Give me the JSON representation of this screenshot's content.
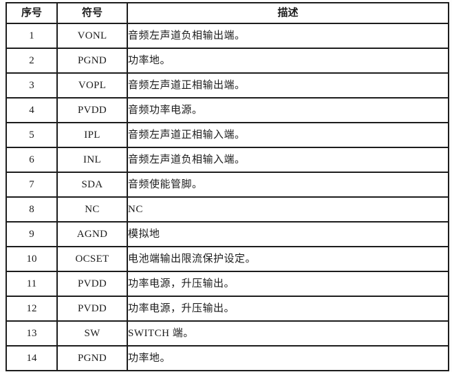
{
  "colors": {
    "border": "#1c1c1c",
    "text": "#1c1c1c",
    "background": "#ffffff"
  },
  "table": {
    "headers": {
      "no": "序号",
      "symbol": "符号",
      "desc": "描述"
    },
    "rows": [
      {
        "no": "1",
        "symbol": "VONL",
        "desc": "音频左声道负相输出端。"
      },
      {
        "no": "2",
        "symbol": "PGND",
        "desc": "功率地。"
      },
      {
        "no": "3",
        "symbol": "VOPL",
        "desc": "音频左声道正相输出端。"
      },
      {
        "no": "4",
        "symbol": "PVDD",
        "desc": "音频功率电源。"
      },
      {
        "no": "5",
        "symbol": "IPL",
        "desc": "音频左声道正相输入端。"
      },
      {
        "no": "6",
        "symbol": "INL",
        "desc": "音频左声道负相输入端。"
      },
      {
        "no": "7",
        "symbol": "SDA",
        "desc": "音频使能管脚。"
      },
      {
        "no": "8",
        "symbol": "NC",
        "desc": "NC"
      },
      {
        "no": "9",
        "symbol": "AGND",
        "desc": "模拟地"
      },
      {
        "no": "10",
        "symbol": "OCSET",
        "desc": "电池端输出限流保护设定。"
      },
      {
        "no": "11",
        "symbol": "PVDD",
        "desc": "功率电源，升压输出。"
      },
      {
        "no": "12",
        "symbol": "PVDD",
        "desc": "功率电源，升压输出。"
      },
      {
        "no": "13",
        "symbol": "SW",
        "desc": "SWITCH 端。"
      },
      {
        "no": "14",
        "symbol": "PGND",
        "desc": "功率地。"
      }
    ]
  }
}
